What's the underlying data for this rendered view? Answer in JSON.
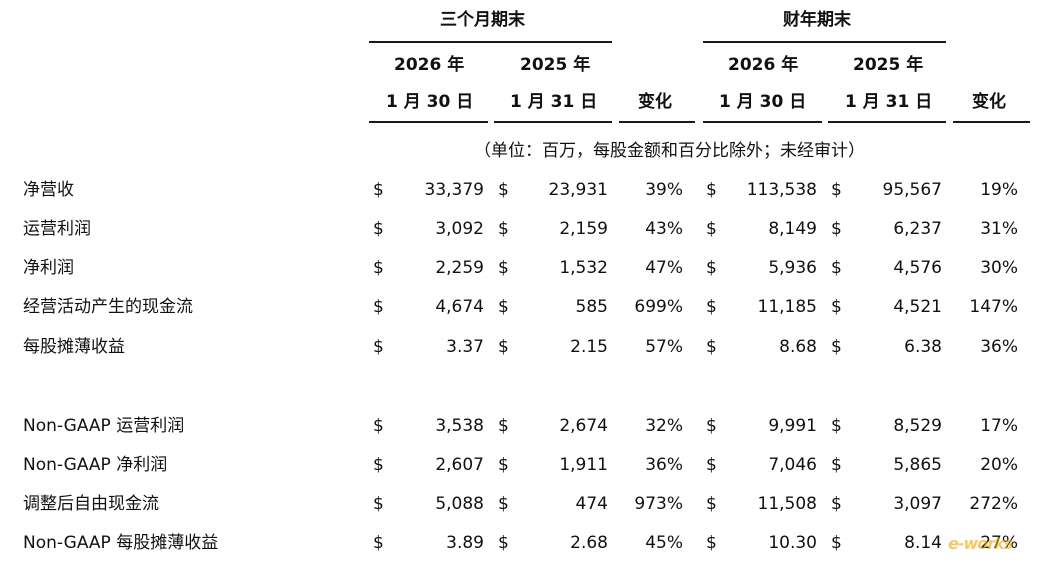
{
  "header": {
    "group1": "三个月期末",
    "group2": "财年期末",
    "col_year_a": "2026 年",
    "col_year_b": "2025 年",
    "col_date_a": "1 月 30 日",
    "col_date_b": "1 月 31 日",
    "change": "变化"
  },
  "unit_note": "（单位：百万，每股金额和百分比除外；未经审计）",
  "currency_symbol": "$",
  "rows": [
    {
      "label": "净营收",
      "q_2026": "33,379",
      "q_2025": "23,931",
      "q_change": "39%",
      "y_2026": "113,538",
      "y_2025": "95,567",
      "y_change": "19%"
    },
    {
      "label": "运营利润",
      "q_2026": "3,092",
      "q_2025": "2,159",
      "q_change": "43%",
      "y_2026": "8,149",
      "y_2025": "6,237",
      "y_change": "31%"
    },
    {
      "label": "净利润",
      "q_2026": "2,259",
      "q_2025": "1,532",
      "q_change": "47%",
      "y_2026": "5,936",
      "y_2025": "4,576",
      "y_change": "30%"
    },
    {
      "label": "经营活动产生的现金流",
      "q_2026": "4,674",
      "q_2025": "585",
      "q_change": "699%",
      "y_2026": "11,185",
      "y_2025": "4,521",
      "y_change": "147%"
    },
    {
      "label": "每股摊薄收益",
      "q_2026": "3.37",
      "q_2025": "2.15",
      "q_change": "57%",
      "y_2026": "8.68",
      "y_2025": "6.38",
      "y_change": "36%"
    },
    {
      "label": "Non-GAAP 运营利润",
      "q_2026": "3,538",
      "q_2025": "2,674",
      "q_change": "32%",
      "y_2026": "9,991",
      "y_2025": "8,529",
      "y_change": "17%"
    },
    {
      "label": "Non-GAAP 净利润",
      "q_2026": "2,607",
      "q_2025": "1,911",
      "q_change": "36%",
      "y_2026": "7,046",
      "y_2025": "5,865",
      "y_change": "20%"
    },
    {
      "label": "调整后自由现金流",
      "q_2026": "5,088",
      "q_2025": "474",
      "q_change": "973%",
      "y_2026": "11,508",
      "y_2025": "3,097",
      "y_change": "272%"
    },
    {
      "label": "Non-GAAP 每股摊薄收益",
      "q_2026": "3.89",
      "q_2025": "2.68",
      "q_change": "45%",
      "y_2026": "10.30",
      "y_2025": "8.14",
      "y_change": "27%"
    }
  ],
  "watermark": "e-works"
}
